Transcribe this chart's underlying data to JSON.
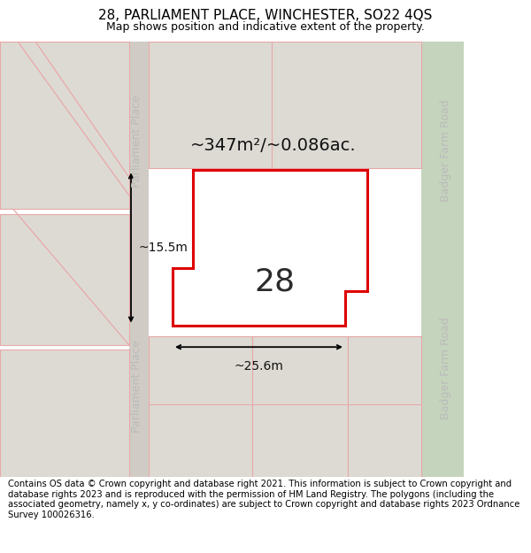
{
  "title": "28, PARLIAMENT PLACE, WINCHESTER, SO22 4QS",
  "subtitle": "Map shows position and indicative extent of the property.",
  "footer": "Contains OS data © Crown copyright and database right 2021. This information is subject to Crown copyright and database rights 2023 and is reproduced with the permission of HM Land Registry. The polygons (including the associated geometry, namely x, y co-ordinates) are subject to Crown copyright and database rights 2023 Ordnance Survey 100026316.",
  "bg_color": "#eeebe5",
  "road_green_color": "#c5d4bc",
  "property_fill": "#ffffff",
  "property_stroke": "#dd0000",
  "parcel_fill": "#dddad4",
  "parcel_stroke": "#e8a8a8",
  "street_text_color": "#bbbbbb",
  "annotation_color": "#111111",
  "dim_label_color": "#111111",
  "area_label": "~347m²/~0.086ac.",
  "number_label": "28",
  "width_label": "~25.6m",
  "height_label": "~15.5m",
  "title_fontsize": 11,
  "subtitle_fontsize": 9,
  "footer_fontsize": 7.2
}
